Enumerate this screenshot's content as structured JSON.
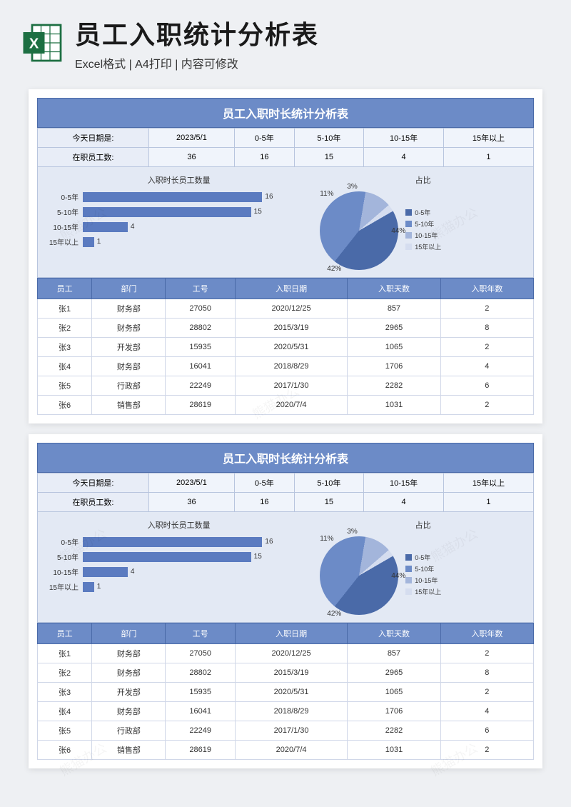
{
  "header": {
    "title": "员工入职统计分析表",
    "subtitle": "Excel格式 | A4打印 | 内容可修改"
  },
  "colors": {
    "banner": "#6c8bc7",
    "border": "#b8c5de",
    "chartbg": "#e3e9f4",
    "bar": "#5b7bc0",
    "pie": [
      "#4a6aa8",
      "#6c8bc7",
      "#a3b5db",
      "#d5ddef"
    ]
  },
  "report": {
    "title": "员工入职时长统计分析表",
    "summary_labels": {
      "date": "今天日期是:",
      "count": "在职员工数:"
    },
    "summary_row1": [
      "2023/5/1",
      "0-5年",
      "5-10年",
      "10-15年",
      "15年以上"
    ],
    "summary_row2": [
      "36",
      "16",
      "15",
      "4",
      "1"
    ],
    "bar_chart": {
      "title": "入职时长员工数量",
      "max": 16,
      "items": [
        {
          "label": "0-5年",
          "value": 16
        },
        {
          "label": "5-10年",
          "value": 15
        },
        {
          "label": "10-15年",
          "value": 4
        },
        {
          "label": "15年以上",
          "value": 1
        }
      ]
    },
    "pie_chart": {
      "title": "占比",
      "slices": [
        {
          "label": "0-5年",
          "pct": 44,
          "color": "#4a6aa8"
        },
        {
          "label": "5-10年",
          "pct": 42,
          "color": "#6c8bc7"
        },
        {
          "label": "10-15年",
          "pct": 11,
          "color": "#a3b5db"
        },
        {
          "label": "15年以上",
          "pct": 3,
          "color": "#d5ddef"
        }
      ]
    },
    "table": {
      "headers": [
        "员工",
        "部门",
        "工号",
        "入职日期",
        "入职天数",
        "入职年数"
      ],
      "rows": [
        [
          "张1",
          "财务部",
          "27050",
          "2020/12/25",
          "857",
          "2"
        ],
        [
          "张2",
          "财务部",
          "28802",
          "2015/3/19",
          "2965",
          "8"
        ],
        [
          "张3",
          "开发部",
          "15935",
          "2020/5/31",
          "1065",
          "2"
        ],
        [
          "张4",
          "财务部",
          "16041",
          "2018/8/29",
          "1706",
          "4"
        ],
        [
          "张5",
          "行政部",
          "22249",
          "2017/1/30",
          "2282",
          "6"
        ],
        [
          "张6",
          "销售部",
          "28619",
          "2020/7/4",
          "1031",
          "2"
        ]
      ]
    }
  },
  "watermark": "熊猫办公"
}
